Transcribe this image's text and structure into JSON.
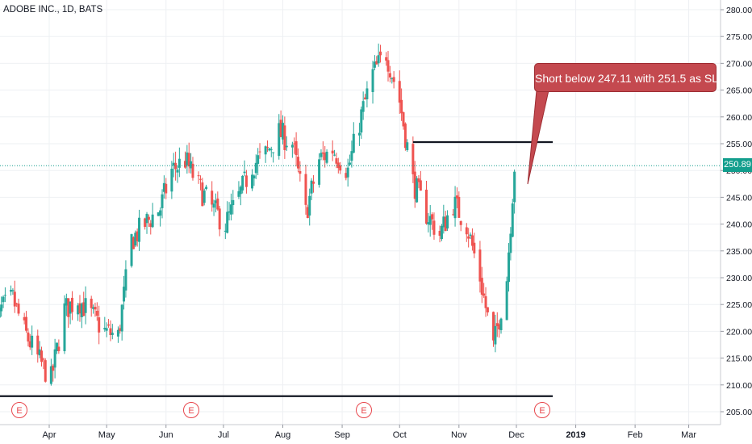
{
  "header": {
    "title": "ADOBE INC., 1D, BATS"
  },
  "annotation": {
    "text": "Short below 247.11 with 251.5 as SL"
  },
  "last_price": "250.89",
  "earnings_marker": "E",
  "colors": {
    "up": "#26a69a",
    "down": "#ef5350",
    "price_line": "#129e8d",
    "callout": "#c4494f"
  },
  "chart_data": {
    "type": "candlestick",
    "title": "ADOBE INC., 1D, BATS",
    "y_axis_side": "right",
    "ylim": [
      203,
      281
    ],
    "y_ticks": [
      205,
      210,
      215,
      220,
      225,
      230,
      235,
      240,
      245,
      250,
      255,
      260,
      265,
      270,
      275,
      280
    ],
    "x_tick_labels": [
      "Apr",
      "May",
      "Jun",
      "Jul",
      "Aug",
      "Sep",
      "Oct",
      "Nov",
      "Dec",
      "2019",
      "Feb",
      "Mar"
    ],
    "grid": true,
    "last_price": 250.89,
    "earnings_dates": [
      "2018-03-15",
      "2018-06-14",
      "2018-09-13",
      "2018-12-13"
    ],
    "horizontal_levels": [
      {
        "value": 255.3,
        "from": "2018-10-08",
        "to": "2018-12-20"
      },
      {
        "value": 207.9,
        "from": "2018-03-01",
        "to": "2018-12-20"
      }
    ],
    "price_series": {
      "dates": [
        "2018-03-01",
        "2018-03-07",
        "2018-03-13",
        "2018-03-19",
        "2018-03-26",
        "2018-04-02",
        "2018-04-09",
        "2018-04-16",
        "2018-04-23",
        "2018-04-30",
        "2018-05-07",
        "2018-05-14",
        "2018-05-21",
        "2018-05-29",
        "2018-06-04",
        "2018-06-11",
        "2018-06-18",
        "2018-06-25",
        "2018-07-02",
        "2018-07-09",
        "2018-07-16",
        "2018-07-23",
        "2018-07-30",
        "2018-08-06",
        "2018-08-13",
        "2018-08-20",
        "2018-08-27",
        "2018-09-04",
        "2018-09-10",
        "2018-09-17",
        "2018-09-24",
        "2018-10-01",
        "2018-10-08",
        "2018-10-15",
        "2018-10-22",
        "2018-10-29",
        "2018-11-05",
        "2018-11-12",
        "2018-11-19",
        "2018-11-26",
        "2018-11-30"
      ],
      "close": [
        217,
        224,
        226,
        220,
        215,
        211,
        224,
        226,
        223,
        220,
        219,
        237,
        240,
        243,
        250,
        252,
        247,
        243,
        240,
        245,
        251,
        253,
        257,
        255,
        242,
        252,
        254,
        250,
        259,
        268,
        272,
        263,
        248,
        242,
        238,
        244,
        240,
        230,
        217,
        230,
        250.89
      ]
    }
  }
}
